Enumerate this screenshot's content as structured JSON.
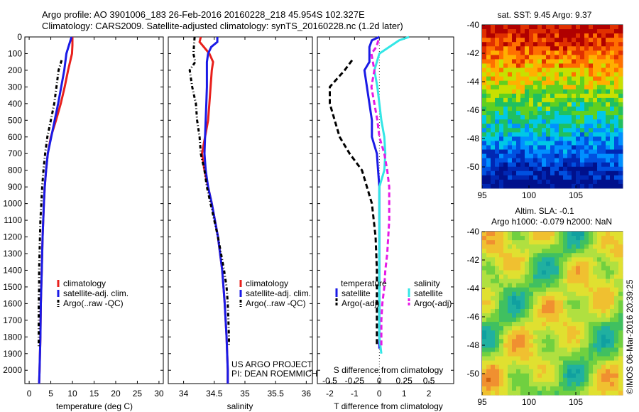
{
  "header": {
    "title_line1": "Argo profile: AO 3901006_183 26-Feb-2016 20160228_218 45.954S 102.327E",
    "title_line2": "Climatology: CARS2009. Satellite-adjusted climatology: synTS_20160228.nc (1.2d later)"
  },
  "colors": {
    "climatology": "#e8201c",
    "satellite": "#1a1ae6",
    "argo": "#000000",
    "sal_satellite": "#33e6e6",
    "sal_argo": "#e61ae6"
  },
  "chart_data": [
    {
      "id": "temperature",
      "type": "line",
      "xlabel": "temperature (deg C)",
      "xlim": [
        -1,
        31
      ],
      "xticks": [
        "0",
        "5",
        "10",
        "15",
        "20",
        "25",
        "30"
      ],
      "ylim": [
        2080,
        0
      ],
      "yticks": [
        "0",
        "100",
        "200",
        "300",
        "400",
        "500",
        "600",
        "700",
        "800",
        "900",
        "1000",
        "1100",
        "1200",
        "1300",
        "1400",
        "1500",
        "1600",
        "1700",
        "1800",
        "1900",
        "2000"
      ],
      "legend": [
        "climatology",
        "satellite-adj. clim.",
        "Argo(..raw -QC)"
      ],
      "series": [
        {
          "name": "climatology",
          "style": "solid",
          "depth": [
            0,
            50,
            100,
            200,
            300,
            400,
            500,
            600,
            700,
            800,
            900,
            1000,
            1200,
            1400,
            1600,
            1800,
            2000,
            2080
          ],
          "values": [
            10.0,
            10.0,
            9.9,
            9.0,
            8.2,
            7.3,
            6.2,
            5.0,
            4.3,
            3.9,
            3.6,
            3.4,
            3.1,
            2.9,
            2.7,
            2.6,
            2.4,
            2.3
          ]
        },
        {
          "name": "satellite-adj. clim.",
          "style": "solid",
          "depth": [
            0,
            40,
            100,
            200,
            300,
            400,
            500,
            600,
            700,
            800,
            900,
            1000,
            1200,
            1400,
            1600,
            1800,
            2000,
            2080
          ],
          "values": [
            9.8,
            9.3,
            8.6,
            8.1,
            7.4,
            6.7,
            5.9,
            5.1,
            4.3,
            3.9,
            3.6,
            3.4,
            3.1,
            2.9,
            2.7,
            2.6,
            2.4,
            2.3
          ]
        },
        {
          "name": "Argo(..raw -QC)",
          "style": "dashdot",
          "depth": [
            140,
            200,
            300,
            400,
            500,
            600,
            700,
            800,
            900,
            1000,
            1100,
            1200,
            1300,
            1400,
            1500,
            1600,
            1700,
            1800,
            1860
          ],
          "values": [
            7.5,
            6.8,
            6.3,
            5.8,
            5.0,
            4.2,
            3.7,
            3.3,
            3.0,
            2.8,
            2.6,
            2.5,
            2.4,
            2.3,
            2.3,
            2.2,
            2.2,
            2.2,
            2.2
          ]
        }
      ]
    },
    {
      "id": "salinity",
      "type": "line",
      "xlabel": "salinity",
      "xlim": [
        33.75,
        36.1
      ],
      "xticks": [
        "34",
        "34.5",
        "35",
        "35.5",
        "36"
      ],
      "ylim": [
        2080,
        0
      ],
      "legend": [
        "climatology",
        "satellite-adj. clim.",
        "Argo(..raw -QC)"
      ],
      "annotation": [
        "US ARGO PROJECT",
        "PI: DEAN ROEMMICH"
      ],
      "series": [
        {
          "name": "climatology",
          "style": "solid",
          "depth": [
            0,
            30,
            60,
            100,
            150,
            200,
            300,
            400,
            500,
            600,
            700,
            800,
            900,
            1000,
            1200,
            1400,
            1600,
            1800,
            2000,
            2080
          ],
          "values": [
            34.28,
            34.26,
            34.33,
            34.42,
            34.48,
            34.46,
            34.44,
            34.42,
            34.4,
            34.35,
            34.3,
            34.34,
            34.4,
            34.46,
            34.56,
            34.63,
            34.67,
            34.7,
            34.72,
            34.72
          ]
        },
        {
          "name": "satellite-adj. clim.",
          "style": "solid",
          "depth": [
            0,
            30,
            60,
            100,
            150,
            200,
            300,
            400,
            500,
            600,
            700,
            800,
            900,
            1000,
            1200,
            1400,
            1600,
            1800,
            2000,
            2080
          ],
          "values": [
            34.55,
            34.55,
            34.45,
            34.4,
            34.38,
            34.38,
            34.38,
            34.37,
            34.36,
            34.35,
            34.34,
            34.36,
            34.4,
            34.46,
            34.56,
            34.63,
            34.67,
            34.7,
            34.72,
            34.72
          ]
        },
        {
          "name": "Argo(..raw -QC)",
          "style": "dashdot",
          "depth": [
            0,
            100,
            150,
            200,
            300,
            400,
            500,
            600,
            700,
            800,
            900,
            1000,
            1100,
            1200,
            1300,
            1400,
            1500,
            1600,
            1700,
            1800,
            1860
          ],
          "values": [
            34.18,
            34.16,
            34.19,
            34.1,
            34.14,
            34.2,
            34.22,
            34.26,
            34.28,
            34.34,
            34.38,
            34.44,
            34.5,
            34.56,
            34.61,
            34.66,
            34.7,
            34.72,
            34.73,
            34.74,
            34.74
          ]
        }
      ]
    },
    {
      "id": "difference",
      "type": "line",
      "xlabel": "T difference from climatology",
      "xlabel_top": "S difference from climatology",
      "xlim": [
        -2.5,
        3
      ],
      "xticks": [
        "-2",
        "-1",
        "0",
        "1",
        "2"
      ],
      "sticks": [
        "-0.5",
        "-0.25",
        "0",
        "0.25",
        "0.5"
      ],
      "ylim": [
        2080,
        0
      ],
      "legend": {
        "temperature_heading": "temperature",
        "salinity_heading": "salinity",
        "temperature": [
          "satellite",
          "Argo(-adj)"
        ],
        "salinity": [
          "satellite",
          "Argo(-adj)"
        ]
      },
      "series": [
        {
          "name": "satellite",
          "group": "temperature",
          "style": "solid",
          "depth": [
            0,
            20,
            60,
            100,
            150,
            200,
            300,
            400,
            500,
            600,
            700,
            800,
            900,
            1000,
            1200,
            1400,
            1600,
            1800,
            1870
          ],
          "values": [
            0.0,
            -0.3,
            -0.4,
            -0.4,
            -0.4,
            -0.6,
            -0.5,
            -0.4,
            -0.3,
            -0.3,
            -0.1,
            -0.05,
            0.0,
            0.0,
            0.0,
            0.0,
            0.0,
            0.0,
            0.0
          ]
        },
        {
          "name": "Argo(-adj)",
          "group": "temperature",
          "style": "dashed",
          "depth": [
            140,
            200,
            300,
            400,
            500,
            600,
            700,
            800,
            900,
            1000,
            1200,
            1400,
            1600,
            1800,
            1860
          ],
          "values": [
            -1.1,
            -1.4,
            -2.0,
            -2.0,
            -1.8,
            -1.6,
            -1.2,
            -0.7,
            -0.5,
            -0.3,
            -0.15,
            -0.1,
            -0.1,
            -0.1,
            -0.1
          ]
        },
        {
          "name": "satellite",
          "group": "salinity",
          "style": "solid",
          "depth": [
            0,
            20,
            60,
            100,
            200,
            300,
            400,
            500,
            600,
            700,
            800,
            900,
            1000,
            1200,
            1400,
            1600,
            1800,
            1900
          ],
          "values": [
            0.3,
            0.2,
            0.1,
            0.0,
            -0.05,
            -0.02,
            0.0,
            0.02,
            0.05,
            0.06,
            0.05,
            0.0,
            0.0,
            0.0,
            0.0,
            0.0,
            0.0,
            0.02
          ]
        },
        {
          "name": "Argo(-adj)",
          "group": "salinity",
          "style": "dashed",
          "depth": [
            20,
            60,
            100,
            200,
            300,
            400,
            500,
            600,
            700,
            800,
            900,
            1000,
            1100,
            1200,
            1300,
            1400,
            1500,
            1600,
            1700,
            1800,
            1860
          ],
          "values": [
            -0.01,
            -0.03,
            -0.08,
            -0.05,
            -0.08,
            -0.05,
            -0.02,
            0.0,
            0.05,
            0.08,
            0.1,
            0.1,
            0.1,
            0.09,
            0.08,
            0.06,
            0.05,
            0.03,
            0.02,
            0.02,
            0.02
          ]
        }
      ]
    },
    {
      "id": "sst_map",
      "type": "heatmap",
      "title": "sat. SST: 9.45 Argo: 9.37",
      "xticks": [
        "95",
        "100",
        "105"
      ],
      "yticks": [
        "-40",
        "-42",
        "-44",
        "-46",
        "-48",
        "-50"
      ],
      "xlim": [
        95,
        110
      ],
      "ylim": [
        -51.5,
        -40
      ]
    },
    {
      "id": "sla_map",
      "type": "heatmap",
      "title": "Altim. SLA: -0.1",
      "subtitle": "Argo h1000: -0.079 h2000: NaN",
      "xticks": [
        "95",
        "100",
        "105"
      ],
      "yticks": [
        "-40",
        "-42",
        "-44",
        "-46",
        "-48",
        "-50"
      ],
      "xlim": [
        95,
        110
      ],
      "ylim": [
        -51.5,
        -40
      ]
    }
  ],
  "footer": {
    "imos_stamp": "©IMOS 06-Mar-2016 20:39:25"
  }
}
